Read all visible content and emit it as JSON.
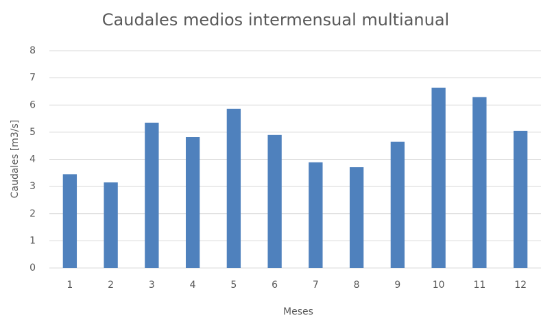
{
  "chart_data": {
    "type": "bar",
    "title": "Caudales medios intermensual multianual",
    "x_label": "Meses",
    "y_label": "Caudales [m3/s]",
    "categories": [
      "1",
      "2",
      "3",
      "4",
      "5",
      "6",
      "7",
      "8",
      "9",
      "10",
      "11",
      "12"
    ],
    "values": [
      3.45,
      3.15,
      5.35,
      4.82,
      5.86,
      4.9,
      3.89,
      3.71,
      4.65,
      6.64,
      6.29,
      5.05
    ],
    "color": "#4f81bd",
    "ylim": [
      0,
      8
    ],
    "yticks": [
      0,
      1,
      2,
      3,
      4,
      5,
      6,
      7,
      8
    ],
    "grid": true
  }
}
